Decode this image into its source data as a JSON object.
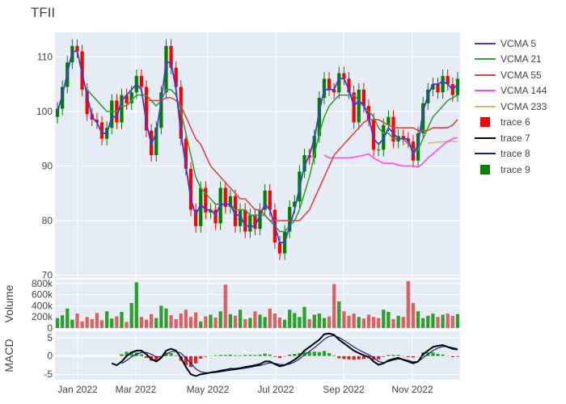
{
  "chart_data": {
    "type": "line",
    "title": "TFII",
    "x_ticks": [
      "Jan 2022",
      "Mar 2022",
      "May 2022",
      "Jul 2022",
      "Sep 2022",
      "Nov 2022"
    ],
    "panels": [
      {
        "name": "price",
        "ylabel": "",
        "yticks": [
          70,
          80,
          90,
          100,
          110
        ],
        "ylim": [
          69.5,
          114.5
        ],
        "candles": {
          "up_color": "#008000",
          "down_color": "#ff0000",
          "close": [
            100.5,
            104.5,
            109,
            112,
            111,
            104,
            99.5,
            98.5,
            98,
            95,
            97,
            102,
            98,
            103,
            101.5,
            103.5,
            106.5,
            104.5,
            96.5,
            92,
            97,
            103.5,
            112,
            108,
            104.5,
            95,
            89.5,
            82,
            79,
            86,
            81.5,
            82,
            79.5,
            86,
            82.5,
            84.5,
            79,
            82,
            78,
            81,
            78.5,
            82,
            85.5,
            82,
            76,
            74,
            78,
            82.5,
            83.5,
            89,
            92,
            91.5,
            95.5,
            102.5,
            106,
            104,
            103.5,
            107,
            106,
            103.5,
            98,
            104,
            101,
            98.5,
            93,
            93,
            97.5,
            99,
            94.5,
            95.5,
            95,
            94.5,
            91,
            96,
            101.5,
            104,
            105,
            103.5,
            106.5,
            105,
            103,
            106
          ],
          "vcma5": [
            100,
            103,
            107,
            111,
            111,
            107,
            103,
            99,
            98,
            96,
            96,
            99,
            99,
            102,
            103,
            104,
            105,
            104,
            98,
            94,
            96,
            102,
            109,
            109,
            104,
            96,
            90,
            84,
            81,
            83,
            82,
            82,
            81,
            83,
            83,
            83,
            81,
            81,
            79,
            79,
            79,
            81,
            83,
            82,
            79,
            76,
            76,
            79,
            82,
            86,
            90,
            92,
            95,
            100,
            104,
            104,
            104,
            106,
            106,
            104,
            101,
            102,
            101,
            99,
            95,
            94,
            95,
            97,
            96,
            95,
            95,
            95,
            92,
            94,
            100,
            103,
            105,
            105,
            105.5,
            105,
            104,
            105
          ],
          "vcma21": [
            null,
            null,
            null,
            null,
            null,
            null,
            104,
            103,
            102,
            101,
            100,
            100,
            100,
            101,
            101,
            102,
            103,
            103,
            103,
            102,
            101,
            102,
            104,
            104,
            103,
            100,
            96,
            92,
            88,
            86,
            85,
            84,
            83,
            83,
            83,
            83,
            82,
            82,
            82,
            81,
            81,
            81,
            81,
            80,
            79,
            78,
            78,
            79,
            80,
            82,
            85,
            88,
            92,
            96,
            99,
            101,
            102,
            103,
            103,
            103,
            103,
            102,
            101,
            100,
            99,
            97,
            96,
            96,
            95,
            95,
            95,
            94,
            93,
            93,
            95,
            97,
            99,
            100,
            101,
            102,
            102.5,
            103
          ],
          "vcma55": [
            null,
            null,
            null,
            null,
            null,
            null,
            null,
            null,
            null,
            null,
            null,
            null,
            null,
            null,
            null,
            null,
            null,
            null,
            102,
            102,
            102,
            102,
            102.5,
            102.5,
            102,
            101,
            99,
            97,
            95,
            94,
            92,
            90,
            89,
            88,
            87,
            86,
            85,
            84,
            84,
            83,
            82,
            82,
            81,
            80,
            80,
            80,
            80,
            80,
            80,
            80,
            81,
            82,
            84,
            86,
            88,
            90,
            92,
            93,
            94,
            95,
            96,
            97,
            98,
            98.5,
            98.5,
            98.5,
            98,
            97.5,
            97,
            97,
            97,
            97,
            97,
            96.5,
            96.5,
            96.5,
            97,
            97,
            97,
            97,
            97.5,
            98.5
          ],
          "vcma144": [
            null,
            null,
            null,
            null,
            null,
            null,
            null,
            null,
            null,
            null,
            null,
            null,
            null,
            null,
            null,
            null,
            null,
            null,
            null,
            null,
            null,
            null,
            null,
            null,
            null,
            null,
            null,
            null,
            null,
            null,
            null,
            null,
            null,
            null,
            null,
            null,
            null,
            null,
            null,
            null,
            null,
            null,
            null,
            null,
            null,
            null,
            null,
            null,
            null,
            null,
            null,
            null,
            null,
            null,
            92,
            91.5,
            91.5,
            91.5,
            91.5,
            91.5,
            91.6,
            91.8,
            92,
            92.2,
            91.5,
            91,
            90.5,
            90.5,
            90.5,
            90.2,
            90,
            90,
            90,
            89.8,
            90.5,
            91.5,
            92.2,
            93,
            93.8,
            94.5,
            95,
            95.2
          ],
          "vcma233": [
            null,
            null,
            null,
            null,
            null,
            null,
            null,
            null,
            null,
            null,
            null,
            null,
            null,
            null,
            null,
            null,
            null,
            null,
            null,
            null,
            null,
            null,
            null,
            null,
            null,
            null,
            null,
            null,
            null,
            null,
            null,
            null,
            null,
            null,
            null,
            null,
            null,
            null,
            null,
            null,
            null,
            null,
            null,
            null,
            null,
            null,
            null,
            null,
            null,
            null,
            null,
            null,
            null,
            null,
            null,
            null,
            null,
            null,
            null,
            null,
            null,
            null,
            null,
            null,
            null,
            null,
            null,
            null,
            null,
            null,
            null,
            null,
            null,
            null,
            null,
            94.2,
            94.3,
            94.4,
            94.4,
            94.5,
            94.5,
            94.5
          ]
        }
      },
      {
        "name": "volume",
        "ylabel": "Volume",
        "yticks": [
          0,
          200000,
          400000,
          600000,
          800000
        ],
        "ytick_labels": [
          "0",
          "200k",
          "400k",
          "600k",
          "800k"
        ],
        "ylim": [
          0,
          870000
        ],
        "values": [
          180000,
          230000,
          350000,
          150000,
          260000,
          120000,
          200000,
          160000,
          270000,
          140000,
          300000,
          170000,
          210000,
          290000,
          110000,
          450000,
          820000,
          200000,
          150000,
          250000,
          180000,
          400000,
          350000,
          230000,
          160000,
          260000,
          330000,
          200000,
          280000,
          120000,
          210000,
          240000,
          190000,
          300000,
          780000,
          250000,
          220000,
          330000,
          160000,
          180000,
          300000,
          240000,
          200000,
          350000,
          260000,
          190000,
          150000,
          330000,
          270000,
          200000,
          380000,
          160000,
          240000,
          260000,
          180000,
          210000,
          790000,
          480000,
          300000,
          220000,
          260000,
          200000,
          170000,
          240000,
          200000,
          180000,
          330000,
          290000,
          160000,
          220000,
          200000,
          840000,
          450000,
          300000,
          180000,
          220000,
          260000,
          200000,
          240000,
          260000,
          220000,
          250000
        ],
        "up": [
          true,
          true,
          true,
          true,
          false,
          false,
          false,
          false,
          false,
          false,
          true,
          true,
          false,
          true,
          false,
          true,
          true,
          false,
          false,
          false,
          true,
          true,
          true,
          false,
          false,
          false,
          false,
          false,
          false,
          true,
          false,
          true,
          false,
          true,
          false,
          true,
          false,
          true,
          false,
          true,
          false,
          true,
          true,
          false,
          false,
          false,
          true,
          true,
          true,
          true,
          true,
          false,
          true,
          true,
          true,
          false,
          false,
          true,
          false,
          false,
          false,
          true,
          false,
          false,
          false,
          false,
          true,
          true,
          false,
          true,
          false,
          false,
          false,
          true,
          true,
          true,
          true,
          false,
          true,
          false,
          false,
          true
        ]
      },
      {
        "name": "macd",
        "ylabel": "MACD",
        "yticks": [
          -5,
          0,
          5
        ],
        "ylim": [
          -6.5,
          6.8
        ],
        "macd": [
          null,
          null,
          null,
          null,
          null,
          null,
          null,
          null,
          null,
          null,
          null,
          -2,
          -2.5,
          -1.5,
          0,
          1,
          1.5,
          1.5,
          0.5,
          -0.8,
          -1.5,
          -0.5,
          1.5,
          2,
          1.5,
          -0.5,
          -3,
          -5,
          -5.5,
          -5,
          -4.8,
          -4.5,
          -4.3,
          -4,
          -3.8,
          -3.5,
          -3.5,
          -3.3,
          -3,
          -2.8,
          -2.5,
          -2.2,
          -1.5,
          -1.5,
          -2.2,
          -2.8,
          -2.5,
          -1.8,
          -1,
          0,
          1.5,
          2.5,
          3.5,
          4.5,
          6,
          6.2,
          5.8,
          4.5,
          3.5,
          2.5,
          1.5,
          0.8,
          0.2,
          -0.2,
          -1.5,
          -2.4,
          -2,
          -1.2,
          -0.8,
          -0.5,
          -1,
          -1.5,
          -2,
          -1.5,
          0.5,
          1.5,
          2.5,
          2.8,
          3,
          2.5,
          2,
          1.8
        ],
        "signal": [
          null,
          null,
          null,
          null,
          null,
          null,
          null,
          null,
          null,
          null,
          null,
          null,
          null,
          -2,
          -1.2,
          -0.2,
          0.5,
          1,
          1,
          0.5,
          -0.2,
          -0.3,
          0.5,
          1.2,
          1.3,
          0.8,
          -0.5,
          -2,
          -3.5,
          -4.3,
          -4.6,
          -4.6,
          -4.5,
          -4.3,
          -4.1,
          -3.9,
          -3.7,
          -3.5,
          -3.3,
          -3.1,
          -2.8,
          -2.6,
          -2.2,
          -1.9,
          -2,
          -2.3,
          -2.4,
          -2.2,
          -1.6,
          -0.8,
          0.3,
          1.3,
          2.3,
          3.4,
          4.6,
          5.4,
          5.6,
          5.1,
          4.3,
          3.4,
          2.5,
          1.7,
          1,
          0.4,
          -0.5,
          -1.5,
          -1.8,
          -1.5,
          -1.1,
          -0.8,
          -0.9,
          -1.2,
          -1.6,
          -1.5,
          -0.5,
          0.5,
          1.5,
          2.2,
          2.6,
          2.6,
          2.3,
          2
        ],
        "histogram_color_up": "#2ca02c",
        "histogram_color_down": "#d62728"
      }
    ],
    "series_colors": {
      "vcma5": "#3c3cdc",
      "vcma21": "#3c9a3c",
      "vcma55": "#e04444",
      "vcma144": "#ff44ff",
      "vcma233": "#ddb86a",
      "macd": "#000000",
      "signal": "#1a1a8c"
    }
  },
  "legend": [
    {
      "label": "VCMA 5",
      "kind": "line",
      "color": "#3c3cdc"
    },
    {
      "label": "VCMA 21",
      "kind": "line",
      "color": "#3c9a3c"
    },
    {
      "label": "VCMA 55",
      "kind": "line",
      "color": "#e04444"
    },
    {
      "label": "VCMA 144",
      "kind": "line",
      "color": "#ff44ff"
    },
    {
      "label": "VCMA 233",
      "kind": "line",
      "color": "#ddb86a"
    },
    {
      "label": "trace 6",
      "kind": "box",
      "color": "#ff0000"
    },
    {
      "label": "trace 7",
      "kind": "line",
      "color": "#000000"
    },
    {
      "label": "trace 8",
      "kind": "line",
      "color": "#1a1a8c"
    },
    {
      "label": "trace 9",
      "kind": "box",
      "color": "#008000"
    }
  ]
}
